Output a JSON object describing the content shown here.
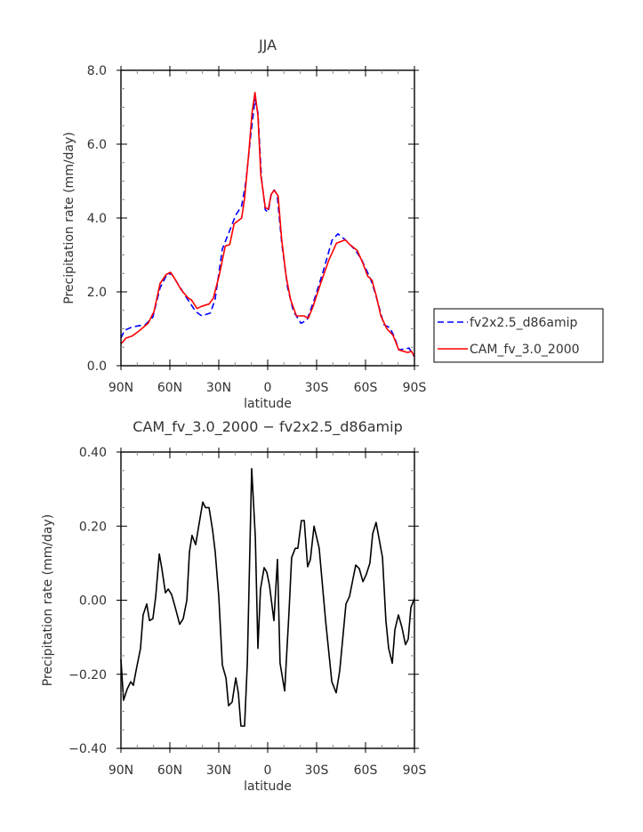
{
  "chart_data": [
    {
      "type": "line",
      "title": "JJA",
      "xlabel": "latitude",
      "ylabel": "Precipitation rate (mm/day)",
      "xlim": [
        90,
        -90
      ],
      "ylim": [
        0,
        8
      ],
      "xticks": [
        90,
        60,
        30,
        0,
        -30,
        -60,
        -90
      ],
      "xtick_labels": [
        "90N",
        "60N",
        "30N",
        "0",
        "30S",
        "60S",
        "90S"
      ],
      "yticks": [
        0,
        2,
        4,
        6,
        8
      ],
      "ytick_labels": [
        "0.0",
        "2.0",
        "4.0",
        "6.0",
        "8.0"
      ],
      "grid": false,
      "legend_placement": "outside-right",
      "series": [
        {
          "name": "fv2x2.5_d86amip",
          "color": "#0000ff",
          "style": "dashed",
          "x": [
            90,
            87.8,
            84.2,
            80.5,
            75.1,
            70.5,
            66.0,
            61.5,
            58.7,
            49.6,
            44.2,
            40.5,
            35.1,
            32.3,
            27.8,
            24.2,
            19.6,
            16.0,
            13.3,
            10.5,
            7.8,
            6.0,
            3.8,
            1.5,
            -0.4,
            -2.2,
            -4.0,
            -5.8,
            -8.6,
            -12.2,
            -15.8,
            -20.4,
            -24.0,
            -28.6,
            -34.0,
            -39.5,
            -43.1,
            -47.6,
            -54.0,
            -57.6,
            -63.1,
            -65.8,
            -71.3,
            -74.9,
            -77.6,
            -80.4,
            -85.8,
            -86.7,
            -90
          ],
          "y": [
            0.75,
            0.96,
            1.03,
            1.07,
            1.11,
            1.31,
            2.11,
            2.5,
            2.47,
            1.83,
            1.47,
            1.35,
            1.43,
            1.79,
            3.16,
            3.56,
            4.08,
            4.32,
            5.0,
            6.21,
            7.21,
            6.85,
            5.08,
            4.22,
            4.16,
            4.67,
            4.76,
            4.64,
            3.32,
            2.11,
            1.47,
            1.15,
            1.23,
            1.79,
            2.55,
            3.4,
            3.57,
            3.41,
            3.12,
            2.87,
            2.35,
            1.99,
            1.11,
            1.03,
            0.79,
            0.43,
            0.47,
            0.48,
            0.24
          ]
        },
        {
          "name": "CAM_fv_3.0_2000",
          "color": "#ff0000",
          "style": "solid",
          "x": [
            90,
            86.9,
            83.3,
            78.7,
            73.3,
            69.7,
            66.0,
            62.3,
            59.6,
            56.9,
            53.3,
            48.7,
            46.9,
            43.3,
            40.5,
            36.0,
            33.3,
            29.6,
            26.0,
            23.3,
            20.6,
            16.0,
            14.2,
            11.5,
            9.6,
            7.8,
            6.0,
            4.2,
            1.5,
            -0.4,
            -2.2,
            -4.0,
            -6.4,
            -8.6,
            -11.3,
            -14.0,
            -17.6,
            -22.2,
            -24.9,
            -27.7,
            -32.2,
            -37.6,
            -42.2,
            -47.6,
            -50.4,
            -54.9,
            -58.5,
            -61.3,
            -64.0,
            -66.7,
            -69.4,
            -73.1,
            -76.8,
            -80.4,
            -85.8,
            -88.2,
            -90
          ],
          "y": [
            0.59,
            0.75,
            0.8,
            0.95,
            1.15,
            1.47,
            2.23,
            2.47,
            2.53,
            2.35,
            2.07,
            1.83,
            1.79,
            1.55,
            1.61,
            1.67,
            1.83,
            2.47,
            3.24,
            3.28,
            3.84,
            4.0,
            4.52,
            5.81,
            6.85,
            7.4,
            6.77,
            5.16,
            4.28,
            4.24,
            4.64,
            4.75,
            4.6,
            3.4,
            2.43,
            1.79,
            1.35,
            1.35,
            1.29,
            1.59,
            2.19,
            2.87,
            3.32,
            3.41,
            3.28,
            3.12,
            2.76,
            2.43,
            2.31,
            1.87,
            1.35,
            1.0,
            0.83,
            0.43,
            0.36,
            0.39,
            0.25
          ]
        }
      ]
    },
    {
      "type": "line",
      "title": "CAM_fv_3.0_2000 − fv2x2.5_d86amip",
      "xlabel": "latitude",
      "ylabel": "Precipitation rate (mm/day)",
      "xlim": [
        90,
        -90
      ],
      "ylim": [
        -0.4,
        0.4
      ],
      "xticks": [
        90,
        60,
        30,
        0,
        -30,
        -60,
        -90
      ],
      "xtick_labels": [
        "90N",
        "60N",
        "30N",
        "0",
        "30S",
        "60S",
        "90S"
      ],
      "yticks": [
        0.4,
        0.2,
        0,
        -0.2,
        -0.4
      ],
      "ytick_labels": [
        "0.40",
        "0.20",
        "0.00",
        "−0.20",
        "−0.40"
      ],
      "grid": false,
      "series": [
        {
          "color": "#000000",
          "style": "solid",
          "x": [
            90,
            88.4,
            86.2,
            84,
            82.4,
            80.7,
            78,
            76.4,
            74.2,
            72.5,
            70.4,
            68.7,
            66.5,
            64.9,
            62.7,
            61,
            58.9,
            56.7,
            54,
            51.8,
            49.6,
            48,
            46.4,
            44.2,
            42.5,
            39.8,
            38.2,
            36,
            33.8,
            32.2,
            30,
            27.8,
            25.6,
            24,
            21.8,
            19.6,
            18,
            16.4,
            14.2,
            12.5,
            9.8,
            7.6,
            6,
            4.4,
            2.2,
            0.5,
            -1.1,
            -3.8,
            -6,
            -7.6,
            -10.4,
            -13.1,
            -14.7,
            -16.9,
            -18.5,
            -20.7,
            -22.4,
            -24.5,
            -26.2,
            -28.4,
            -31.6,
            -35.5,
            -39.3,
            -42,
            -44.2,
            -46.4,
            -48,
            -50.2,
            -52.4,
            -54,
            -56.2,
            -58.4,
            -60.5,
            -62.7,
            -64.4,
            -66.5,
            -70.4,
            -72.5,
            -74.2,
            -76.4,
            -78,
            -80.2,
            -82.4,
            -84.5,
            -86.2,
            -87.8,
            -90
          ],
          "y": [
            -0.16,
            -0.27,
            -0.24,
            -0.22,
            -0.23,
            -0.19,
            -0.13,
            -0.04,
            -0.01,
            -0.055,
            -0.05,
            0.01,
            0.125,
            0.085,
            0.02,
            0.03,
            0.015,
            -0.02,
            -0.065,
            -0.05,
            0.0,
            0.13,
            0.175,
            0.15,
            0.195,
            0.265,
            0.25,
            0.25,
            0.19,
            0.13,
            0.01,
            -0.175,
            -0.21,
            -0.285,
            -0.275,
            -0.21,
            -0.25,
            -0.34,
            -0.34,
            -0.17,
            0.355,
            0.17,
            -0.13,
            0.03,
            0.088,
            0.075,
            0.04,
            -0.055,
            0.11,
            -0.17,
            -0.245,
            -0.03,
            0.115,
            0.14,
            0.14,
            0.215,
            0.215,
            0.09,
            0.11,
            0.2,
            0.14,
            -0.055,
            -0.22,
            -0.25,
            -0.19,
            -0.085,
            -0.01,
            0.01,
            0.06,
            0.095,
            0.085,
            0.05,
            0.07,
            0.1,
            0.18,
            0.21,
            0.115,
            -0.055,
            -0.13,
            -0.17,
            -0.08,
            -0.04,
            -0.075,
            -0.12,
            -0.105,
            -0.02,
            0.005
          ]
        }
      ]
    }
  ]
}
